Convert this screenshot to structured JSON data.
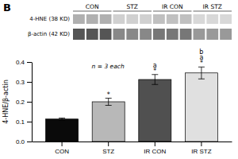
{
  "chart_data": [
    {
      "type": "blot",
      "title": "B",
      "categories": [
        "CON",
        "STZ",
        "IR CON",
        "IR STZ"
      ],
      "lanes": 3,
      "series": [
        {
          "name": "4-HNE (38 KD)",
          "colors": [
            "#b0b0b0",
            "#d0d0d0",
            "#c0c0c0",
            "#d8d8d8"
          ]
        },
        {
          "name": "β-actin (42 KD)",
          "colors": [
            "#555555",
            "#888888",
            "#777777",
            "#999999"
          ]
        }
      ]
    },
    {
      "type": "bar",
      "categories": [
        "CON",
        "STZ",
        "IR CON",
        "IR STZ"
      ],
      "values": [
        0.113,
        0.2,
        0.312,
        0.345
      ],
      "errors": [
        0.005,
        0.018,
        0.025,
        0.03
      ],
      "colors": [
        "#0a0a0a",
        "#b8b8b8",
        "#505050",
        "#e0e0e0"
      ],
      "ylabel": "4-HNE/β-actin",
      "ylim": [
        0.0,
        0.4
      ],
      "yticks": [
        {
          "value": 0.0,
          "label": "0.0"
        },
        0.1,
        0.2,
        0.3,
        0.4
      ],
      "annotation": "n = 3 each",
      "significance_labels": [
        [],
        [
          "*"
        ],
        [
          "*",
          "a"
        ],
        [
          "*",
          "a",
          "b"
        ]
      ]
    }
  ]
}
